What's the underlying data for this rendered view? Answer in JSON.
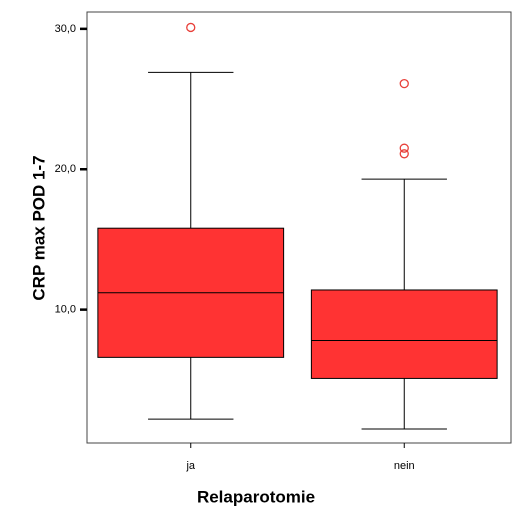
{
  "chart_data": {
    "type": "box",
    "x_label": "Relaparotomie",
    "y_label": "CRP max POD 1-7",
    "categories": [
      "ja",
      "nein"
    ],
    "color": "#ff3333",
    "outlier_color": "#e8403a",
    "boxes": [
      {
        "whisker_low": 2.2,
        "q1": 6.6,
        "median": 11.2,
        "q3": 15.8,
        "whisker_high": 26.9,
        "outliers": [
          30.1
        ]
      },
      {
        "whisker_low": 1.5,
        "q1": 5.1,
        "median": 7.8,
        "q3": 11.4,
        "whisker_high": 19.3,
        "outliers": [
          26.1,
          21.5,
          21.1
        ]
      }
    ],
    "ylim": [
      0.5,
      31.2
    ],
    "yticks": [
      {
        "value": 10,
        "label": "10,0"
      },
      {
        "value": 20,
        "label": "20,0"
      },
      {
        "value": 30,
        "label": "30,0"
      }
    ],
    "grid": false
  }
}
